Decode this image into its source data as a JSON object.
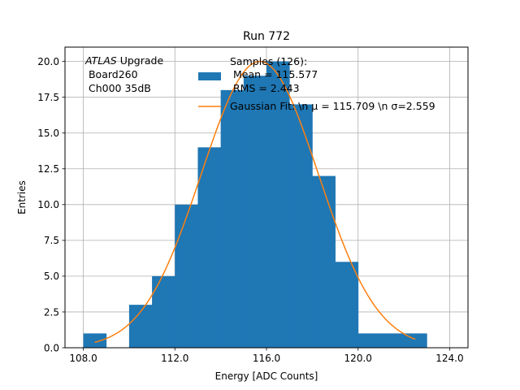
{
  "chart_data": {
    "type": "bar",
    "title": "Run 772",
    "xlabel": "Energy [ADC Counts]",
    "ylabel": "Entries",
    "xlim": [
      107.2,
      124.8
    ],
    "ylim": [
      0,
      21
    ],
    "grid": true,
    "x_ticks": [
      "108.0",
      "112.0",
      "116.0",
      "120.0",
      "124.0"
    ],
    "x_tick_values": [
      108,
      112,
      116,
      120,
      124
    ],
    "y_ticks": [
      "0.0",
      "2.5",
      "5.0",
      "7.5",
      "10.0",
      "12.5",
      "15.0",
      "17.5",
      "20.0"
    ],
    "y_tick_values": [
      0,
      2.5,
      5,
      7.5,
      10,
      12.5,
      15,
      17.5,
      20
    ],
    "annotation": {
      "line1_italic": "ATLAS",
      "line1_rest": " Upgrade",
      "line2": " Board260",
      "line3": " Ch000 35dB"
    },
    "legend_position": "top-right",
    "legend": {
      "hist_label_lines": [
        "Samples (126):",
        " Mean = 115.577",
        " RMS = 2.443"
      ],
      "fit_label": "Gaussian Fit: \\n μ = 115.709 \\n σ=2.559"
    },
    "colors": {
      "hist": "#1f77b4",
      "fit": "#ff7f0e",
      "grid": "#b0b0b0"
    },
    "histogram": {
      "name": "Samples (126):",
      "bins": [
        {
          "x0": 108.0,
          "x1": 109.0,
          "count": 1
        },
        {
          "x0": 109.0,
          "x1": 110.0,
          "count": 0
        },
        {
          "x0": 110.0,
          "x1": 111.0,
          "count": 3
        },
        {
          "x0": 111.0,
          "x1": 112.0,
          "count": 5
        },
        {
          "x0": 112.0,
          "x1": 113.0,
          "count": 10
        },
        {
          "x0": 113.0,
          "x1": 114.0,
          "count": 14
        },
        {
          "x0": 114.0,
          "x1": 115.0,
          "count": 18
        },
        {
          "x0": 115.0,
          "x1": 116.0,
          "count": 19
        },
        {
          "x0": 116.0,
          "x1": 117.0,
          "count": 20
        },
        {
          "x0": 117.0,
          "x1": 118.0,
          "count": 17
        },
        {
          "x0": 118.0,
          "x1": 119.0,
          "count": 12
        },
        {
          "x0": 119.0,
          "x1": 120.0,
          "count": 6
        },
        {
          "x0": 120.0,
          "x1": 123.0,
          "count": 1
        }
      ]
    },
    "fit": {
      "name": "Gaussian Fit",
      "mu": 115.709,
      "sigma": 2.559,
      "amplitude": 20.0,
      "x_range": [
        108.5,
        122.5
      ]
    }
  }
}
